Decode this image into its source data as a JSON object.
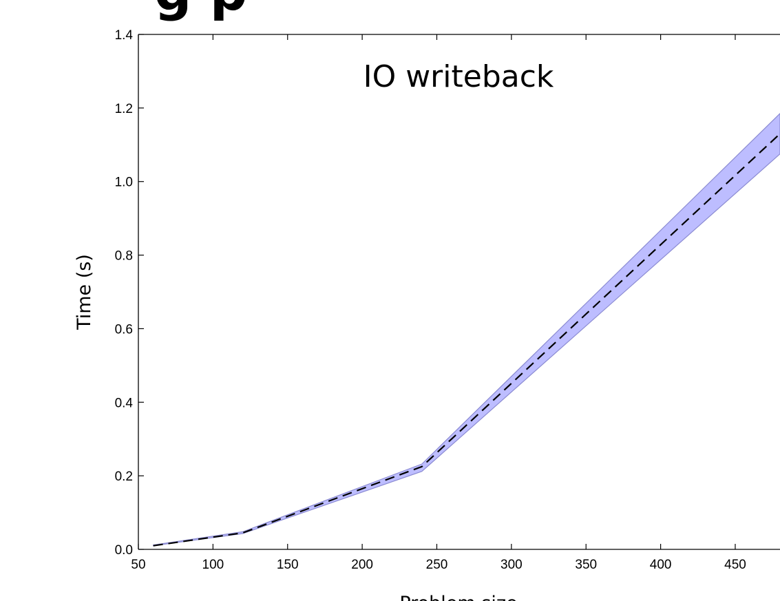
{
  "chart_data": {
    "type": "line",
    "title": "",
    "annotation": "IO writeback",
    "heading_fragment": "g p",
    "xlabel": "Problem size",
    "ylabel": "Time (s)",
    "xlim": [
      50,
      480
    ],
    "ylim": [
      0.0,
      1.4
    ],
    "x_ticks": [
      50,
      100,
      150,
      200,
      250,
      300,
      350,
      400,
      450
    ],
    "x_tick_labels": [
      "50",
      "100",
      "150",
      "200",
      "250",
      "300",
      "350",
      "400",
      "450"
    ],
    "y_ticks": [
      0.0,
      0.2,
      0.4,
      0.6,
      0.8,
      1.0,
      1.2,
      1.4
    ],
    "y_tick_labels": [
      "0.0",
      "0.2",
      "0.4",
      "0.6",
      "0.8",
      "1.0",
      "1.2",
      "1.4"
    ],
    "grid": false,
    "legend": "none",
    "series": [
      {
        "x": [
          60,
          120,
          240,
          480
        ],
        "mean": [
          0.01,
          0.045,
          0.225,
          1.13
        ],
        "lower": [
          0.01,
          0.043,
          0.212,
          1.075
        ],
        "upper": [
          0.012,
          0.048,
          0.232,
          1.185
        ],
        "line_style": "dashed",
        "line_color": "#000000",
        "band_color": "#9999ff"
      }
    ]
  }
}
